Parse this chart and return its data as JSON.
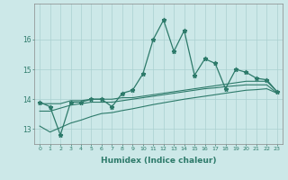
{
  "x": [
    0,
    1,
    2,
    3,
    4,
    5,
    6,
    7,
    8,
    9,
    10,
    11,
    12,
    13,
    14,
    15,
    16,
    17,
    18,
    19,
    20,
    21,
    22,
    23
  ],
  "line_main": [
    13.9,
    13.75,
    12.8,
    13.9,
    13.9,
    14.0,
    14.0,
    13.75,
    14.2,
    14.3,
    14.85,
    16.0,
    16.65,
    15.6,
    16.3,
    14.8,
    15.35,
    15.2,
    14.35,
    15.0,
    14.9,
    14.7,
    14.65,
    14.25
  ],
  "line_s1": [
    13.85,
    13.85,
    13.85,
    13.95,
    13.95,
    14.0,
    14.0,
    14.0,
    14.05,
    14.05,
    14.1,
    14.15,
    14.2,
    14.25,
    14.3,
    14.35,
    14.4,
    14.45,
    14.5,
    14.55,
    14.6,
    14.6,
    14.6,
    14.25
  ],
  "line_s2": [
    13.6,
    13.6,
    13.7,
    13.8,
    13.85,
    13.9,
    13.9,
    13.9,
    13.95,
    14.0,
    14.05,
    14.1,
    14.15,
    14.2,
    14.25,
    14.3,
    14.35,
    14.38,
    14.42,
    14.45,
    14.48,
    14.48,
    14.48,
    14.2
  ],
  "line_s3": [
    13.1,
    12.9,
    13.05,
    13.2,
    13.3,
    13.42,
    13.52,
    13.55,
    13.62,
    13.68,
    13.75,
    13.82,
    13.88,
    13.94,
    14.0,
    14.05,
    14.1,
    14.15,
    14.2,
    14.25,
    14.3,
    14.32,
    14.35,
    14.2
  ],
  "xlabel": "Humidex (Indice chaleur)",
  "line_color": "#2d7a6a",
  "bg_color": "#cce8e8",
  "grid_color": "#aad0d0",
  "ylim": [
    12.5,
    17.2
  ],
  "xlim": [
    -0.5,
    23.5
  ]
}
